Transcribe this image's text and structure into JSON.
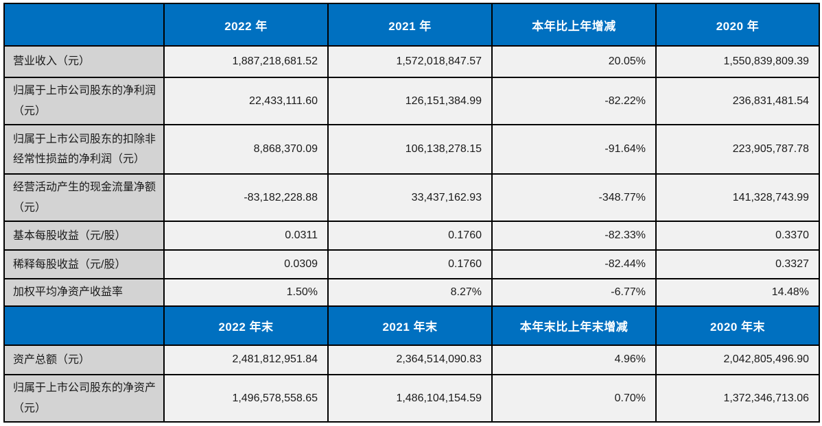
{
  "colors": {
    "header_bg": "#0070C0",
    "header_text": "#FFFFFF",
    "label_bg": "#D3D3D3",
    "cell_bg": "#F1F1F1",
    "border": "#000000"
  },
  "chart_data": {
    "type": "table",
    "title": "",
    "sections": [
      {
        "headers": [
          "",
          "2022 年",
          "2021 年",
          "本年比上年增减",
          "2020 年"
        ],
        "rows": [
          {
            "label": "营业收入（元）",
            "values": [
              "1,887,218,681.52",
              "1,572,018,847.57",
              "20.05%",
              "1,550,839,809.39"
            ]
          },
          {
            "label": "归属于上市公司股东的净利润\n（元）",
            "values": [
              "22,433,111.60",
              "126,151,384.99",
              "-82.22%",
              "236,831,481.54"
            ]
          },
          {
            "label": "归属于上市公司股东的扣除非\n经常性损益的净利润（元）",
            "values": [
              "8,868,370.09",
              "106,138,278.15",
              "-91.64%",
              "223,905,787.78"
            ]
          },
          {
            "label": "经营活动产生的现金流量净额\n（元）",
            "values": [
              "-83,182,228.88",
              "33,437,162.93",
              "-348.77%",
              "141,328,743.99"
            ]
          },
          {
            "label": "基本每股收益（元/股）",
            "values": [
              "0.0311",
              "0.1760",
              "-82.33%",
              "0.3370"
            ]
          },
          {
            "label": "稀释每股收益（元/股）",
            "values": [
              "0.0309",
              "0.1760",
              "-82.44%",
              "0.3327"
            ]
          },
          {
            "label": "加权平均净资产收益率",
            "values": [
              "1.50%",
              "8.27%",
              "-6.77%",
              "14.48%"
            ]
          }
        ]
      },
      {
        "headers": [
          "",
          "2022 年末",
          "2021 年末",
          "本年末比上年末增减",
          "2020 年末"
        ],
        "rows": [
          {
            "label": "资产总额（元）",
            "values": [
              "2,481,812,951.84",
              "2,364,514,090.83",
              "4.96%",
              "2,042,805,496.90"
            ]
          },
          {
            "label": "归属于上市公司股东的净资产\n（元）",
            "values": [
              "1,496,578,558.65",
              "1,486,104,154.59",
              "0.70%",
              "1,372,346,713.06"
            ]
          }
        ]
      }
    ]
  }
}
